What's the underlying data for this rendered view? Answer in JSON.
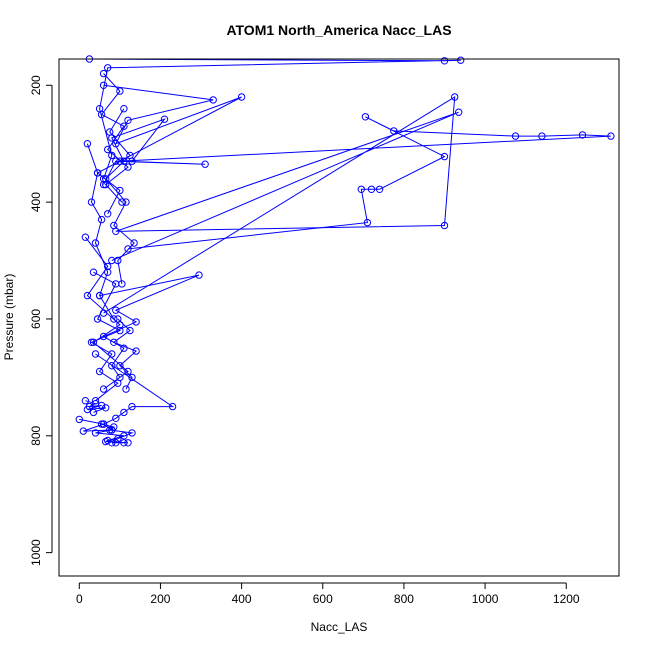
{
  "chart_data": {
    "type": "line",
    "title": "ATOM1 North_America Nacc_LAS",
    "xlabel": "Nacc_LAS",
    "ylabel": "Pressure (mbar)",
    "xlim": [
      -50,
      1330
    ],
    "ylim": [
      1040,
      155
    ],
    "y_reversed": true,
    "xticks": [
      0,
      200,
      400,
      600,
      800,
      1000,
      1200
    ],
    "yticks": [
      200,
      400,
      600,
      800,
      1000
    ],
    "series_color": "#0000ff",
    "marker": "open-circle",
    "grid": false,
    "series": [
      {
        "x": [
          25,
          900,
          940,
          70,
          50,
          80,
          60
        ],
        "y": [
          155,
          158,
          157,
          170,
          240,
          320,
          360
        ]
      },
      {
        "x": [
          60,
          330,
          120,
          90,
          400,
          45,
          100,
          70
        ],
        "y": [
          200,
          225,
          260,
          300,
          220,
          350,
          380,
          420
        ]
      },
      {
        "x": [
          130,
          210,
          80,
          110,
          310,
          90,
          60
        ],
        "y": [
          330,
          258,
          290,
          330,
          335,
          330,
          370
        ]
      },
      {
        "x": [
          100,
          1310,
          1240,
          1140,
          1075,
          775,
          705,
          900,
          740,
          720,
          695,
          710,
          120
        ],
        "y": [
          330,
          287,
          285,
          287,
          287,
          278,
          254,
          322,
          378,
          378,
          378,
          435,
          480
        ]
      },
      {
        "x": [
          60,
          925,
          900,
          90,
          935,
          80
        ],
        "y": [
          590,
          220,
          440,
          450,
          246,
          500
        ]
      },
      {
        "x": [
          50,
          295,
          90,
          140,
          60,
          110,
          80,
          100
        ],
        "y": [
          560,
          525,
          585,
          605,
          630,
          650,
          680,
          700
        ]
      },
      {
        "x": [
          40,
          230,
          130,
          110,
          90,
          60,
          80
        ],
        "y": [
          660,
          750,
          750,
          760,
          770,
          780,
          790
        ]
      },
      {
        "x": [
          15,
          70,
          20,
          100,
          35,
          120,
          60
        ],
        "y": [
          460,
          510,
          560,
          610,
          640,
          690,
          720
        ]
      },
      {
        "x": [
          0,
          60,
          10,
          80,
          40,
          110,
          70,
          90
        ],
        "y": [
          772,
          780,
          792,
          790,
          795,
          800,
          808,
          812
        ]
      },
      {
        "x": [
          55,
          85,
          75,
          130,
          95,
          65,
          120,
          80,
          110
        ],
        "y": [
          780,
          785,
          790,
          795,
          805,
          810,
          812,
          812,
          812
        ]
      },
      {
        "x": [
          20,
          45,
          30,
          55,
          40,
          70,
          50,
          85
        ],
        "y": [
          300,
          350,
          400,
          430,
          470,
          520,
          560,
          600
        ]
      },
      {
        "x": [
          110,
          75,
          125,
          65,
          115,
          85,
          135,
          95,
          105
        ],
        "y": [
          240,
          280,
          320,
          360,
          400,
          440,
          470,
          500,
          540
        ]
      },
      {
        "x": [
          35,
          90,
          45,
          100,
          30,
          80,
          50,
          95,
          40
        ],
        "y": [
          520,
          540,
          600,
          620,
          640,
          660,
          690,
          710,
          740
        ]
      },
      {
        "x": [
          15,
          40,
          25,
          55,
          20,
          65,
          35
        ],
        "y": [
          740,
          745,
          750,
          748,
          755,
          752,
          760
        ]
      },
      {
        "x": [
          95,
          125,
          85,
          140,
          100,
          130,
          115
        ],
        "y": [
          600,
          620,
          640,
          655,
          680,
          700,
          720
        ]
      },
      {
        "x": [
          60,
          100,
          55,
          110,
          70,
          120,
          65,
          105
        ],
        "y": [
          180,
          210,
          250,
          270,
          310,
          340,
          370,
          400
        ]
      }
    ]
  }
}
